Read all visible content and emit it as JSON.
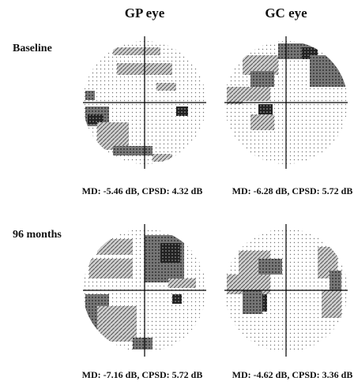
{
  "columns": [
    "GP eye",
    "GC eye"
  ],
  "rows": [
    {
      "label": "Baseline",
      "captions": [
        "MD: -5.46 dB, CPSD: 4.32 dB",
        "MD: -6.28 dB, CPSD: 5.72 dB"
      ]
    },
    {
      "label": "96 months",
      "captions": [
        "MD: -7.16 dB, CPSD: 5.72 dB",
        "MD: -4.62 dB, CPSD: 3.36 dB"
      ]
    }
  ]
}
